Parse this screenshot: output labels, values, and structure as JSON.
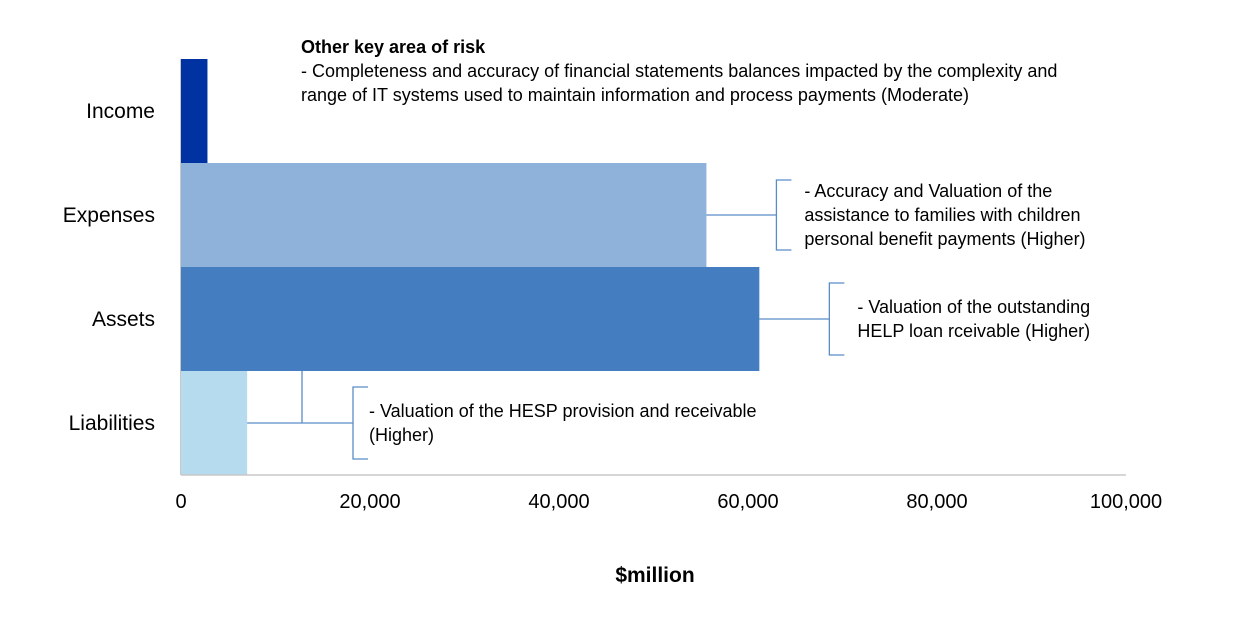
{
  "chart_data": {
    "type": "bar",
    "orientation": "horizontal",
    "categories": [
      "Income",
      "Expenses",
      "Assets",
      "Liabilities"
    ],
    "values": [
      2800,
      55600,
      61200,
      7000
    ],
    "colors": [
      "#0033A1",
      "#8FB2DA",
      "#447EC0",
      "#B6DAEE"
    ],
    "xlabel": "$million",
    "xlim": [
      0,
      100000
    ],
    "xticks": [
      0,
      20000,
      40000,
      60000,
      80000,
      100000
    ],
    "xtick_labels": [
      "0",
      "20,000",
      "40,000",
      "60,000",
      "80,000",
      "100,000"
    ],
    "grid": false,
    "bracket_color": "#5B8CC6",
    "annotations": [
      {
        "category": "Income",
        "title": "Other key area of risk",
        "lines": [
          "- Completeness and accuracy of financial statements balances impacted by the complexity and",
          "range  of IT systems used to maintain information and process payments (Moderate)"
        ]
      },
      {
        "category": "Expenses",
        "lines": [
          "- Accuracy and Valuation of the",
          "assistance to families with children",
          "personal benefit payments (Higher)"
        ]
      },
      {
        "category": "Assets",
        "lines": [
          "- Valuation of the outstanding",
          "HELP loan rceivable (Higher)"
        ]
      },
      {
        "category": "Liabilities",
        "lines": [
          "- Valuation of the HESP provision and receivable",
          "(Higher)"
        ]
      }
    ]
  }
}
